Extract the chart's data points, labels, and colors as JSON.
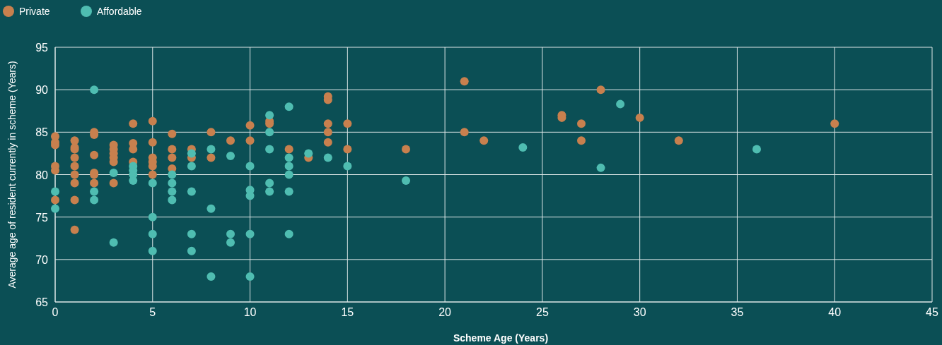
{
  "chart_data": {
    "type": "scatter",
    "xlabel": "Scheme Age (Years)",
    "ylabel": "Average age of resident currently in scheme (Years)",
    "xlim": [
      0,
      45
    ],
    "xticks": [
      0,
      5,
      10,
      15,
      20,
      25,
      30,
      35,
      40,
      45
    ],
    "ylim": [
      65,
      95
    ],
    "yticks": [
      65,
      70,
      75,
      80,
      85,
      90,
      95
    ],
    "grid": true,
    "legend": "top left",
    "marker": "circle",
    "series": [
      {
        "name": "Private",
        "color": "#c8804e",
        "x": [
          0,
          0,
          0,
          0,
          0,
          0,
          1,
          1,
          1,
          1,
          1,
          1,
          1,
          1,
          1,
          2,
          2,
          2,
          2,
          2,
          2,
          3,
          3,
          3,
          3,
          3,
          3,
          4,
          4,
          4,
          4,
          5,
          5,
          5,
          5,
          5,
          5,
          6,
          6,
          6,
          6,
          7,
          7,
          8,
          8,
          9,
          10,
          10,
          11,
          11,
          12,
          13,
          14,
          14,
          14,
          14,
          14,
          15,
          15,
          18,
          21,
          21,
          22,
          26,
          26,
          27,
          27,
          28,
          30,
          32,
          40
        ],
        "values": [
          84.5,
          83.8,
          83.5,
          81,
          80.5,
          77,
          84,
          83.2,
          83,
          82,
          81,
          80,
          79,
          77,
          73.5,
          85,
          84.7,
          82.3,
          80.2,
          80,
          79,
          83.5,
          83,
          82.5,
          82,
          81.5,
          79,
          86,
          83.7,
          83,
          81.5,
          86.3,
          83.8,
          82,
          81.5,
          81,
          80,
          84.8,
          83,
          82,
          80.7,
          83,
          82,
          85,
          82,
          84,
          85.8,
          84,
          86.3,
          86,
          83,
          82,
          89.2,
          88.8,
          86,
          85,
          83.8,
          86,
          83,
          83,
          91,
          85,
          84,
          87,
          86.7,
          86,
          84,
          90,
          86.7,
          84,
          86
        ]
      },
      {
        "name": "Affordable",
        "color": "#4fbdb1",
        "x": [
          0,
          0,
          2,
          2,
          2,
          3,
          3,
          4,
          4,
          4,
          4,
          5,
          5,
          5,
          5,
          6,
          6,
          6,
          6,
          7,
          7,
          7,
          7,
          7,
          8,
          8,
          8,
          9,
          9,
          9,
          10,
          10,
          10,
          10,
          10,
          11,
          11,
          11,
          11,
          11,
          12,
          12,
          12,
          12,
          12,
          12,
          13,
          14,
          15,
          18,
          24,
          28,
          29,
          36
        ],
        "values": [
          78,
          76,
          90,
          78,
          77,
          80.2,
          72,
          81,
          80.5,
          80,
          79.3,
          79,
          75,
          73,
          71,
          80,
          79,
          78,
          77,
          82.5,
          81,
          78,
          73,
          71,
          83,
          76,
          68,
          82.2,
          73,
          72,
          81,
          78.2,
          77.5,
          73,
          68,
          87,
          85,
          83,
          79,
          78,
          88,
          82,
          81,
          80,
          78,
          73,
          82.5,
          82,
          81,
          79.3,
          83.2,
          80.8,
          88.3,
          83
        ]
      }
    ]
  }
}
